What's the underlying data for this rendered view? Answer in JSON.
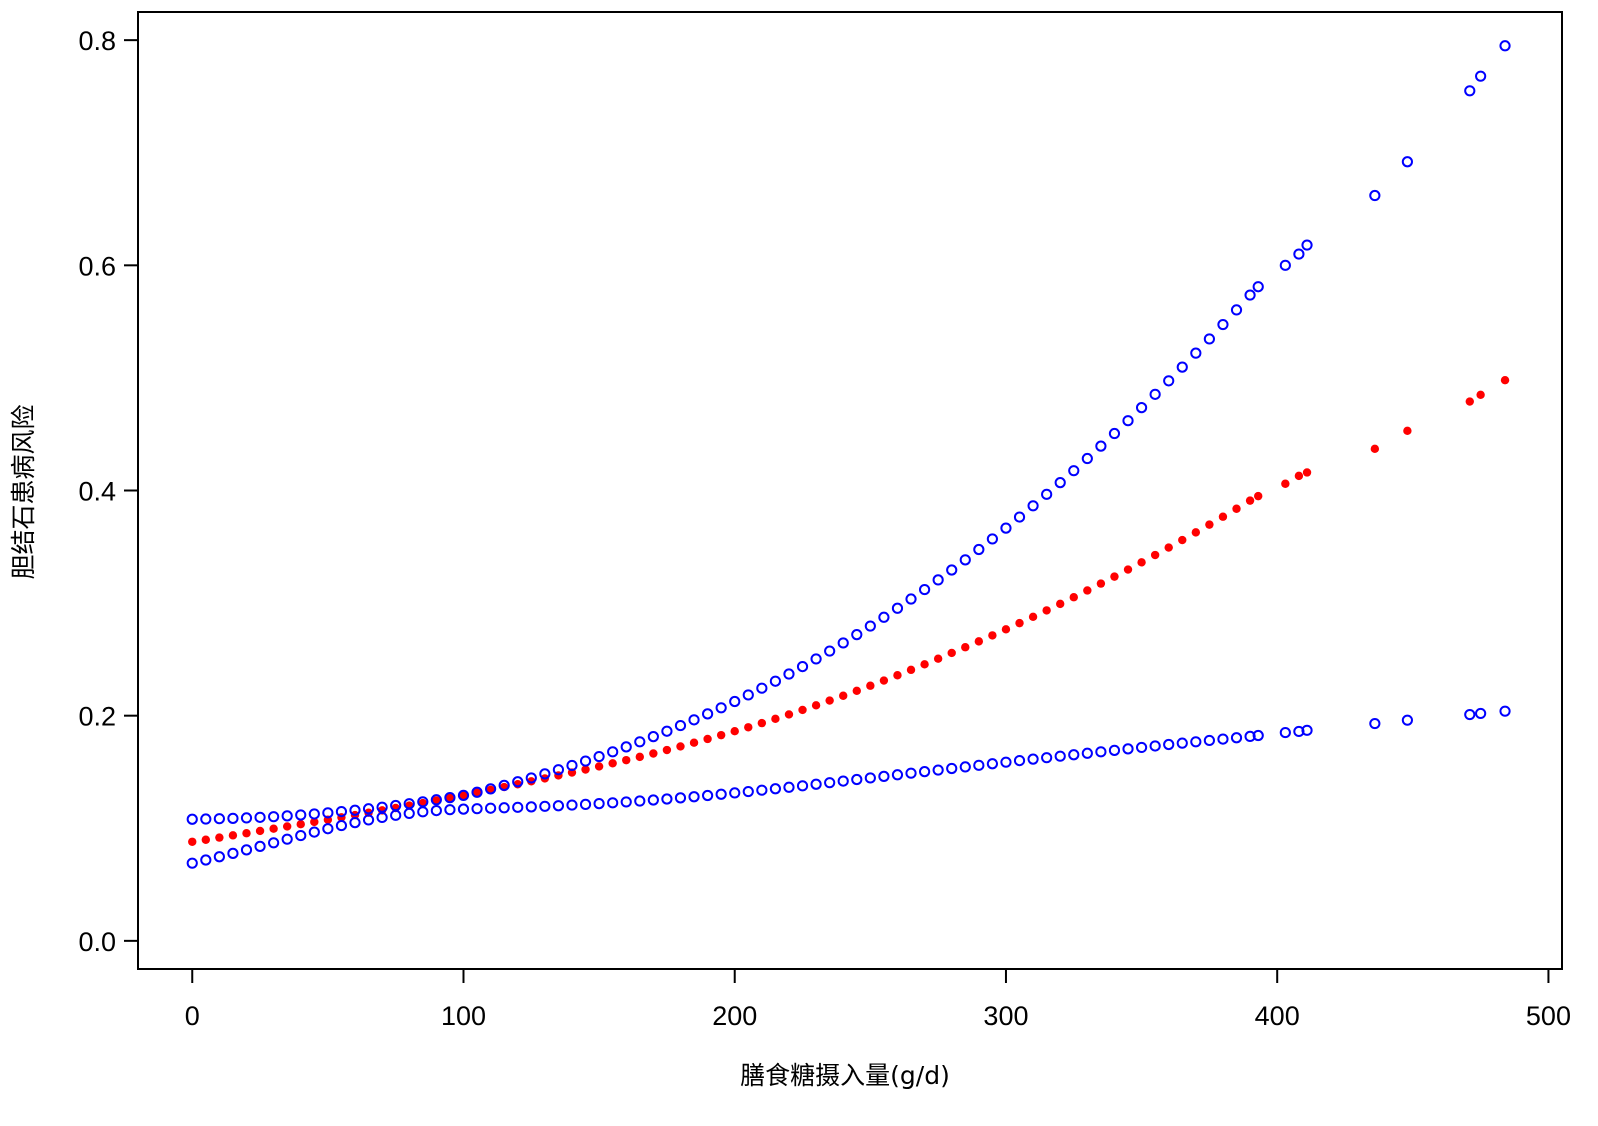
{
  "chart_data": {
    "type": "scatter",
    "title": "",
    "xlabel": "膳食糖摄入量(g/d)",
    "ylabel": "胆结石患病风险",
    "xlim": [
      -20,
      505
    ],
    "ylim": [
      -0.025,
      0.825
    ],
    "x_ticks": [
      0,
      100,
      200,
      300,
      400,
      500
    ],
    "x_tick_labels": [
      "0",
      "100",
      "200",
      "300",
      "400",
      "500"
    ],
    "y_ticks": [
      0.0,
      0.2,
      0.4,
      0.6,
      0.8
    ],
    "y_tick_labels": [
      "0.0",
      "0.2",
      "0.4",
      "0.6",
      "0.8"
    ],
    "grid": false,
    "legend": "none",
    "series": [
      {
        "role": "estimate",
        "color": "#ff0000",
        "marker": "filled-dot",
        "x": [
          0,
          5,
          10,
          15,
          20,
          25,
          30,
          35,
          40,
          45,
          50,
          55,
          60,
          65,
          70,
          75,
          80,
          85,
          90,
          95,
          100,
          105,
          110,
          115,
          120,
          125,
          130,
          135,
          140,
          145,
          150,
          155,
          160,
          165,
          170,
          175,
          180,
          185,
          190,
          195,
          200,
          205,
          210,
          215,
          220,
          225,
          230,
          235,
          240,
          245,
          250,
          255,
          260,
          265,
          270,
          275,
          280,
          285,
          290,
          295,
          300,
          305,
          310,
          315,
          320,
          325,
          330,
          335,
          340,
          345,
          350,
          355,
          360,
          365,
          370,
          375,
          380,
          385,
          390,
          393,
          403,
          408,
          411,
          436,
          448,
          471,
          475,
          484
        ],
        "y": [
          0.088,
          0.0898,
          0.0917,
          0.0937,
          0.0956,
          0.0976,
          0.0996,
          0.1016,
          0.1036,
          0.1056,
          0.1076,
          0.1097,
          0.1117,
          0.1138,
          0.1159,
          0.118,
          0.1202,
          0.1224,
          0.1247,
          0.127,
          0.1293,
          0.1317,
          0.1341,
          0.1366,
          0.1391,
          0.1417,
          0.1443,
          0.1469,
          0.1495,
          0.1522,
          0.1549,
          0.1577,
          0.1605,
          0.1634,
          0.1664,
          0.1695,
          0.1727,
          0.176,
          0.1793,
          0.1827,
          0.1862,
          0.1897,
          0.1934,
          0.1972,
          0.2011,
          0.2051,
          0.2092,
          0.2134,
          0.2177,
          0.2221,
          0.2266,
          0.2312,
          0.2359,
          0.2407,
          0.2456,
          0.2506,
          0.2557,
          0.2608,
          0.266,
          0.2713,
          0.2767,
          0.2822,
          0.2878,
          0.2935,
          0.2993,
          0.3052,
          0.3112,
          0.3173,
          0.3235,
          0.3298,
          0.3362,
          0.3427,
          0.3493,
          0.356,
          0.3628,
          0.3697,
          0.3767,
          0.3838,
          0.391,
          0.395,
          0.406,
          0.413,
          0.416,
          0.437,
          0.453,
          0.479,
          0.485,
          0.498
        ]
      },
      {
        "role": "upper-95ci",
        "color": "#0000ff",
        "marker": "open-circle",
        "x": [
          0,
          5,
          10,
          15,
          20,
          25,
          30,
          35,
          40,
          45,
          50,
          55,
          60,
          65,
          70,
          75,
          80,
          85,
          90,
          95,
          100,
          105,
          110,
          115,
          120,
          125,
          130,
          135,
          140,
          145,
          150,
          155,
          160,
          165,
          170,
          175,
          180,
          185,
          190,
          195,
          200,
          205,
          210,
          215,
          220,
          225,
          230,
          235,
          240,
          245,
          250,
          255,
          260,
          265,
          270,
          275,
          280,
          285,
          290,
          295,
          300,
          305,
          310,
          315,
          320,
          325,
          330,
          335,
          340,
          345,
          350,
          355,
          360,
          365,
          370,
          375,
          380,
          385,
          390,
          393,
          403,
          408,
          411,
          436,
          448,
          471,
          475,
          484
        ],
        "y": [
          0.108,
          0.1082,
          0.1085,
          0.1088,
          0.1092,
          0.1097,
          0.1103,
          0.111,
          0.1118,
          0.1127,
          0.1137,
          0.1148,
          0.116,
          0.1173,
          0.1187,
          0.1202,
          0.1218,
          0.1235,
          0.1253,
          0.1272,
          0.1292,
          0.132,
          0.135,
          0.1381,
          0.1413,
          0.1447,
          0.1483,
          0.152,
          0.1558,
          0.1597,
          0.1637,
          0.1679,
          0.1723,
          0.1768,
          0.1814,
          0.1862,
          0.1912,
          0.1963,
          0.2016,
          0.207,
          0.2126,
          0.2184,
          0.2244,
          0.2306,
          0.237,
          0.2436,
          0.2504,
          0.2574,
          0.2646,
          0.272,
          0.2796,
          0.2874,
          0.2954,
          0.3036,
          0.312,
          0.3206,
          0.3294,
          0.3384,
          0.3476,
          0.357,
          0.3666,
          0.3764,
          0.3864,
          0.3966,
          0.407,
          0.4176,
          0.4284,
          0.4394,
          0.4506,
          0.462,
          0.4736,
          0.4854,
          0.4974,
          0.5096,
          0.522,
          0.5346,
          0.5474,
          0.5604,
          0.5736,
          0.581,
          0.6,
          0.61,
          0.618,
          0.662,
          0.692,
          0.755,
          0.768,
          0.795
        ]
      },
      {
        "role": "lower-95ci",
        "color": "#0000ff",
        "marker": "open-circle",
        "x": [
          0,
          5,
          10,
          15,
          20,
          25,
          30,
          35,
          40,
          45,
          50,
          55,
          60,
          65,
          70,
          75,
          80,
          85,
          90,
          95,
          100,
          105,
          110,
          115,
          120,
          125,
          130,
          135,
          140,
          145,
          150,
          155,
          160,
          165,
          170,
          175,
          180,
          185,
          190,
          195,
          200,
          205,
          210,
          215,
          220,
          225,
          230,
          235,
          240,
          245,
          250,
          255,
          260,
          265,
          270,
          275,
          280,
          285,
          290,
          295,
          300,
          305,
          310,
          315,
          320,
          325,
          330,
          335,
          340,
          345,
          350,
          355,
          360,
          365,
          370,
          375,
          380,
          385,
          390,
          393,
          403,
          408,
          411,
          436,
          448,
          471,
          475,
          484
        ],
        "y": [
          0.069,
          0.0718,
          0.0747,
          0.0777,
          0.0808,
          0.0839,
          0.0871,
          0.0903,
          0.0935,
          0.0966,
          0.0996,
          0.1024,
          0.105,
          0.1074,
          0.1096,
          0.1115,
          0.1132,
          0.1146,
          0.1157,
          0.1165,
          0.117,
          0.1174,
          0.1178,
          0.1182,
          0.1186,
          0.119,
          0.1195,
          0.12,
          0.1206,
          0.1212,
          0.1219,
          0.1226,
          0.1234,
          0.1242,
          0.1251,
          0.126,
          0.127,
          0.128,
          0.1291,
          0.1302,
          0.1314,
          0.1326,
          0.1338,
          0.1351,
          0.1364,
          0.1377,
          0.1391,
          0.1405,
          0.1419,
          0.1433,
          0.1447,
          0.1461,
          0.1475,
          0.1489,
          0.1503,
          0.1517,
          0.1531,
          0.1545,
          0.1559,
          0.1573,
          0.1587,
          0.1601,
          0.1614,
          0.1627,
          0.164,
          0.1653,
          0.1666,
          0.1679,
          0.1692,
          0.1705,
          0.1718,
          0.1731,
          0.1744,
          0.1756,
          0.1768,
          0.178,
          0.1792,
          0.1804,
          0.1816,
          0.1824,
          0.185,
          0.186,
          0.187,
          0.193,
          0.196,
          0.201,
          0.202,
          0.204
        ]
      }
    ]
  }
}
